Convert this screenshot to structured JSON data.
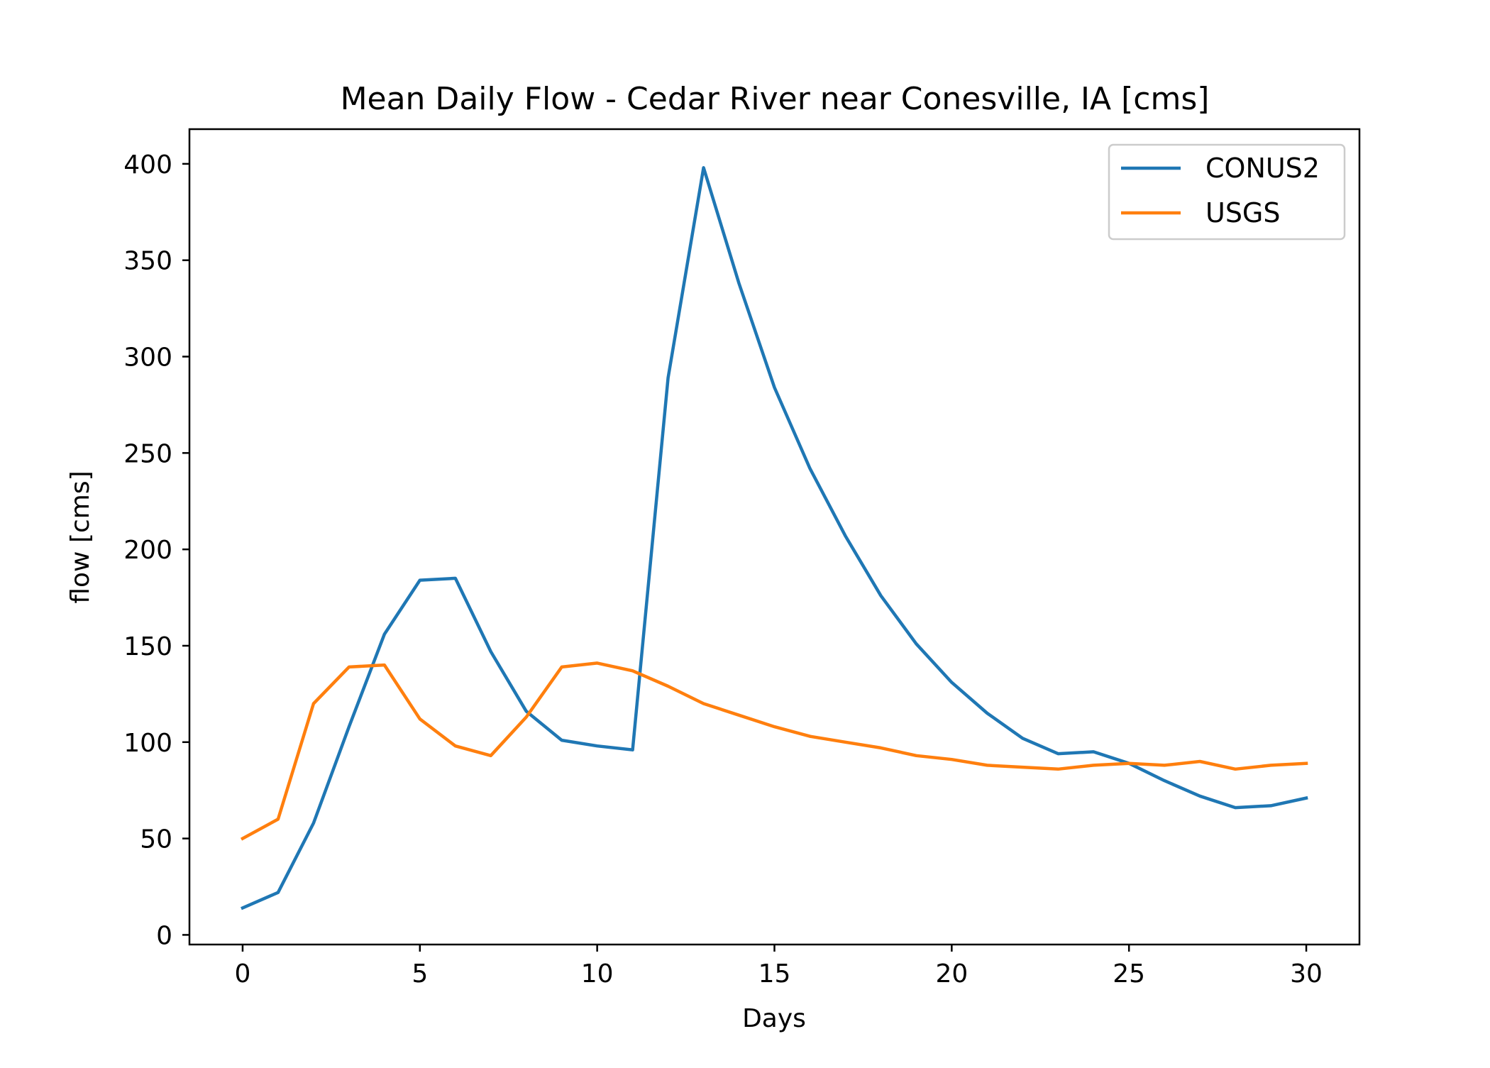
{
  "chart_data": {
    "type": "line",
    "title": "Mean Daily Flow - Cedar River near Conesville, IA [cms]",
    "xlabel": "Days",
    "ylabel": "flow [cms]",
    "xlim": [
      -1.5,
      31.5
    ],
    "ylim": [
      -5,
      418
    ],
    "xticks": [
      0,
      5,
      10,
      15,
      20,
      25,
      30
    ],
    "yticks": [
      0,
      50,
      100,
      150,
      200,
      250,
      300,
      350,
      400
    ],
    "grid": false,
    "legend_position": "top-right",
    "x": [
      0,
      1,
      2,
      3,
      4,
      5,
      6,
      7,
      8,
      9,
      10,
      11,
      12,
      13,
      14,
      15,
      16,
      17,
      18,
      19,
      20,
      21,
      22,
      23,
      24,
      25,
      26,
      27,
      28,
      29,
      30
    ],
    "series": [
      {
        "name": "CONUS2",
        "color": "#1f77b4",
        "values": [
          14,
          22,
          58,
          108,
          156,
          184,
          185,
          147,
          116,
          101,
          98,
          96,
          289,
          398,
          338,
          284,
          242,
          207,
          176,
          151,
          131,
          115,
          102,
          94,
          95,
          89,
          80,
          72,
          66,
          67,
          71
        ]
      },
      {
        "name": "USGS",
        "color": "#ff7f0e",
        "values": [
          50,
          60,
          120,
          139,
          140,
          112,
          98,
          93,
          113,
          139,
          141,
          137,
          129,
          120,
          114,
          108,
          103,
          100,
          97,
          93,
          91,
          88,
          87,
          86,
          88,
          89,
          88,
          90,
          86,
          88,
          89
        ]
      }
    ]
  }
}
